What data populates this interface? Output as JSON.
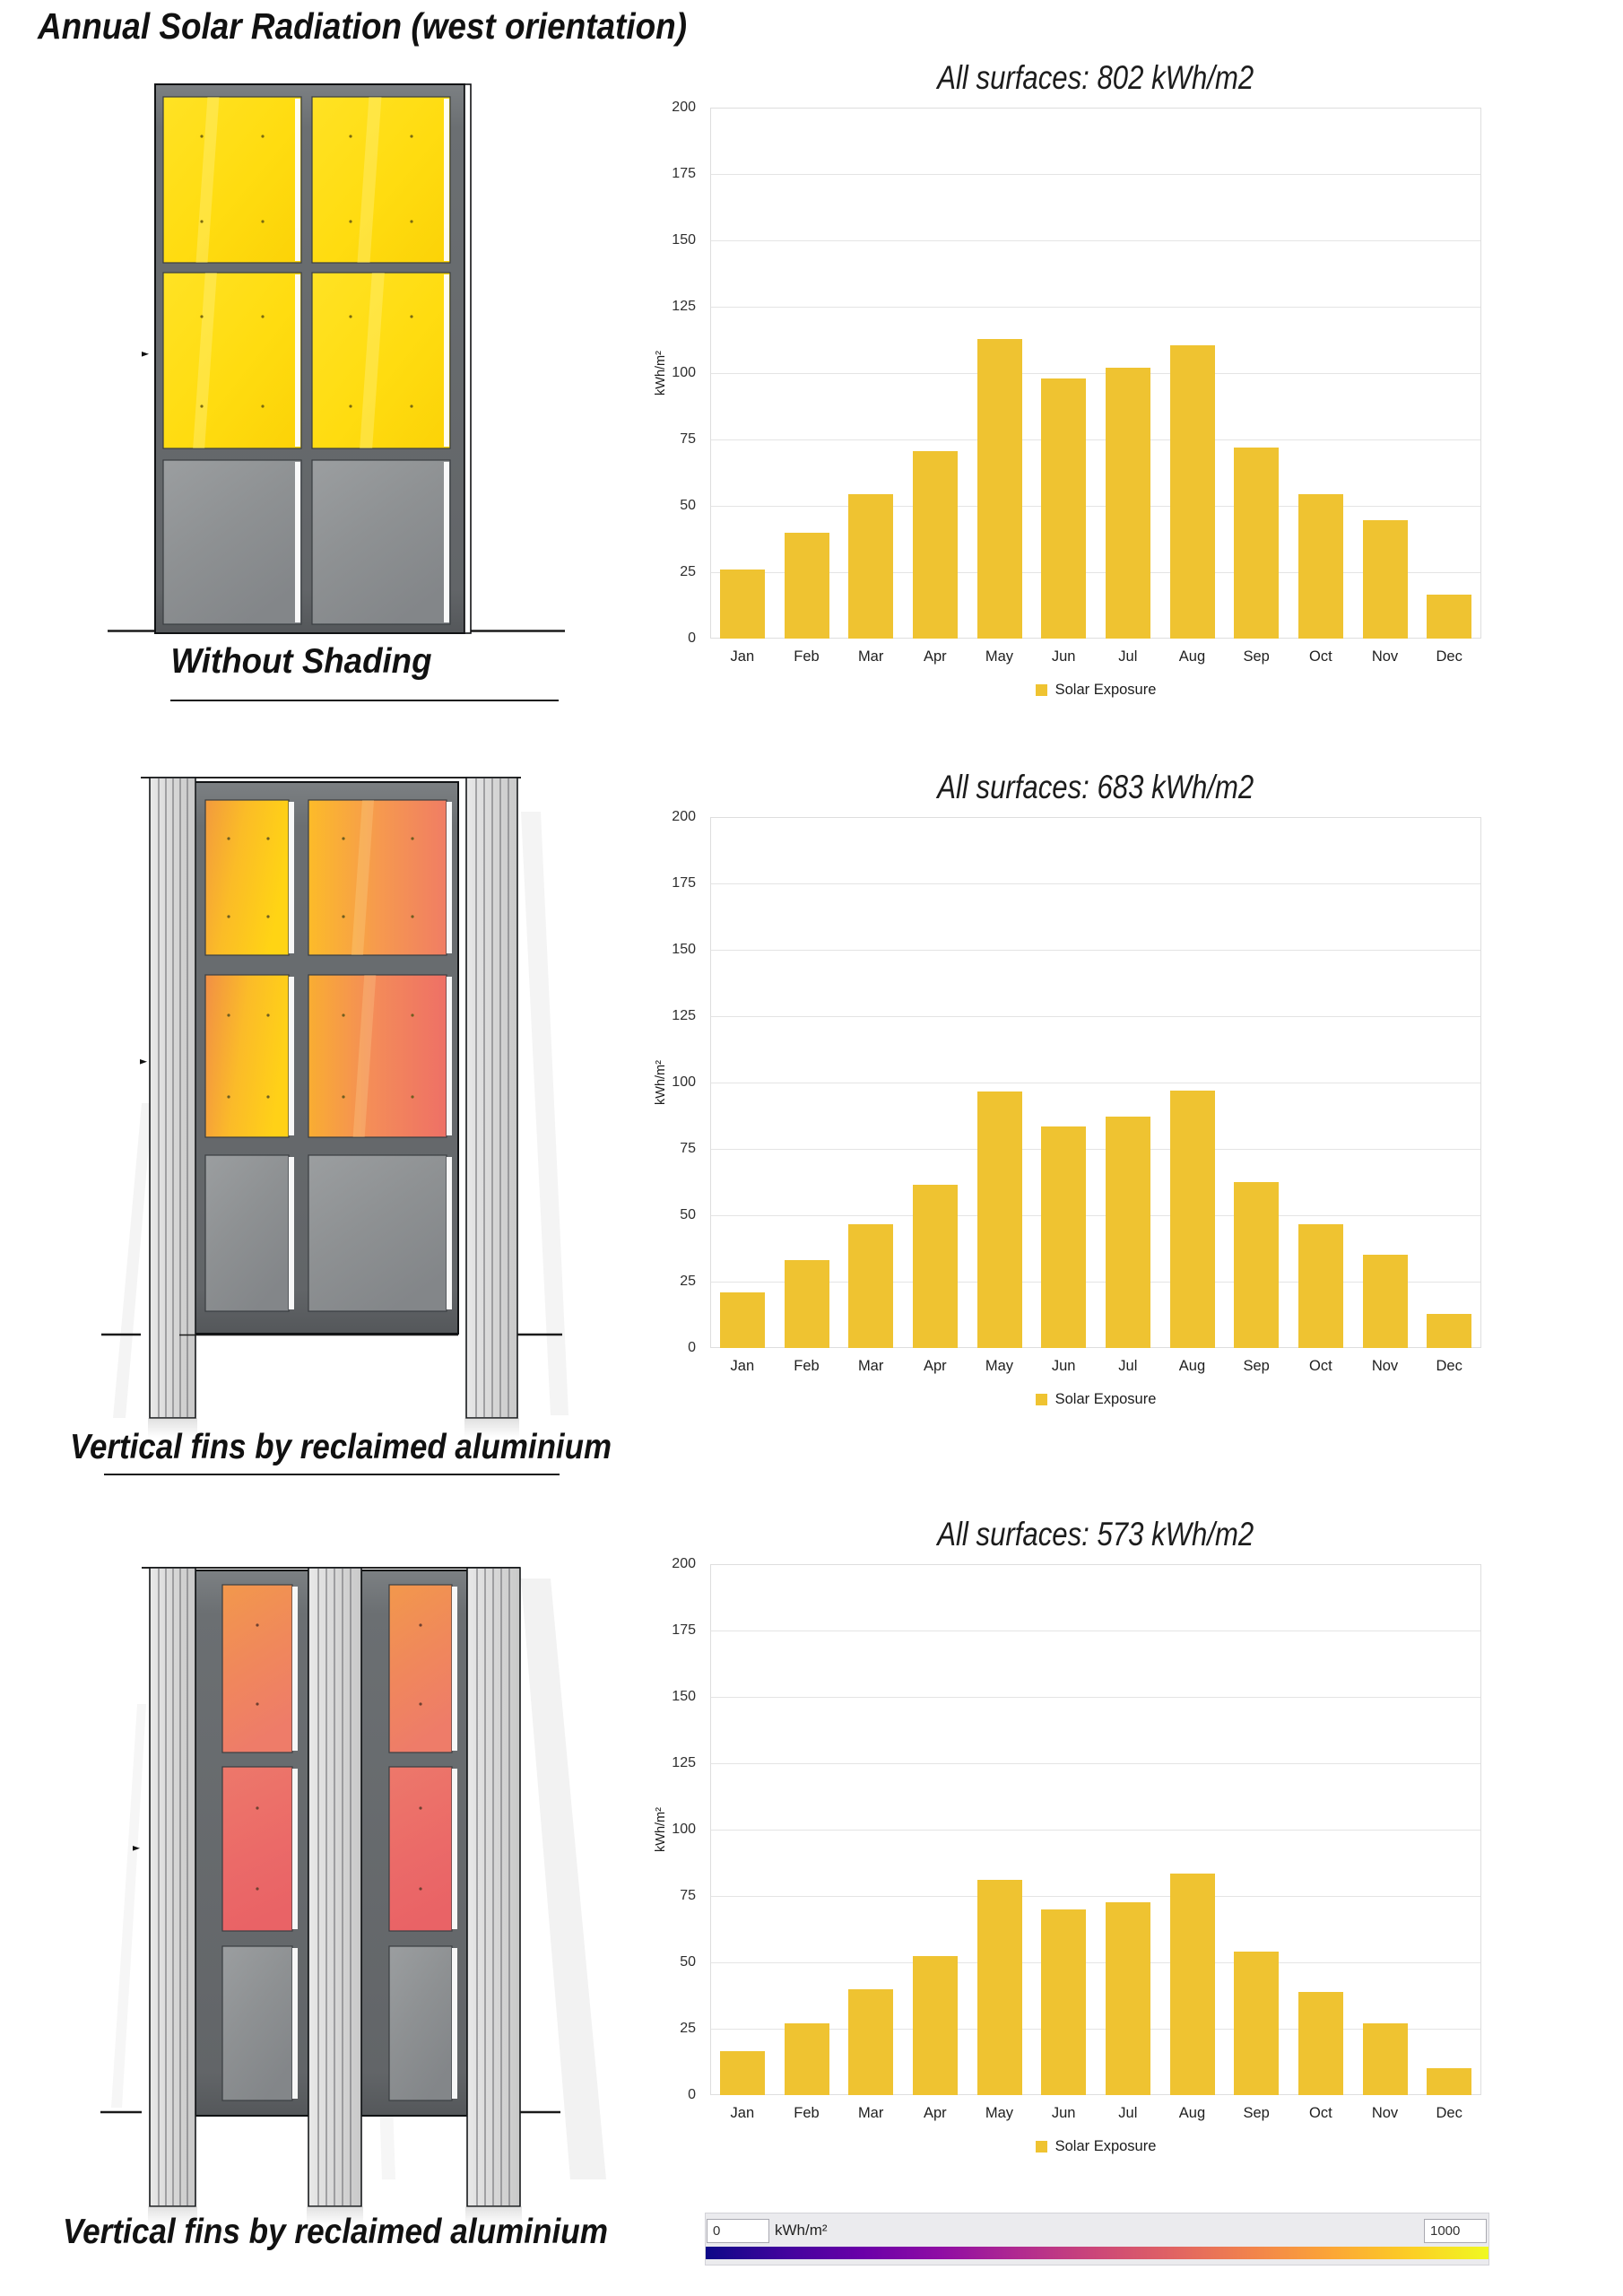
{
  "page_title": "Annual Solar Radiation (west orientation)",
  "rows": [
    {
      "caption": "Without Shading"
    },
    {
      "caption": "Vertical fins by reclaimed aluminium"
    },
    {
      "caption": "Vertical fins by reclaimed aluminium"
    }
  ],
  "chart_data": [
    {
      "type": "bar",
      "title": "All surfaces: 802 kWh/m2",
      "categories": [
        "Jan",
        "Feb",
        "Mar",
        "Apr",
        "May",
        "Jun",
        "Jul",
        "Aug",
        "Sep",
        "Oct",
        "Nov",
        "Dec"
      ],
      "values": [
        26,
        40,
        54.5,
        70.5,
        113,
        98,
        102,
        110.5,
        72,
        54.5,
        44.5,
        16.5
      ],
      "xlabel": "",
      "ylabel": "kWh/m²",
      "ylim": [
        0,
        200
      ],
      "ytick_step": 25,
      "grid": true,
      "legend": [
        "Solar Exposure"
      ],
      "legend_position": "bottom",
      "bar_color": "#efc331"
    },
    {
      "type": "bar",
      "title": "All surfaces: 683 kWh/m2",
      "categories": [
        "Jan",
        "Feb",
        "Mar",
        "Apr",
        "May",
        "Jun",
        "Jul",
        "Aug",
        "Sep",
        "Oct",
        "Nov",
        "Dec"
      ],
      "values": [
        21,
        33,
        46.5,
        61.5,
        96.5,
        83.5,
        87,
        97,
        62.5,
        46.5,
        35,
        13
      ],
      "xlabel": "",
      "ylabel": "kWh/m²",
      "ylim": [
        0,
        200
      ],
      "ytick_step": 25,
      "grid": true,
      "legend": [
        "Solar Exposure"
      ],
      "legend_position": "bottom",
      "bar_color": "#efc331"
    },
    {
      "type": "bar",
      "title": "All surfaces: 573 kWh/m2",
      "categories": [
        "Jan",
        "Feb",
        "Mar",
        "Apr",
        "May",
        "Jun",
        "Jul",
        "Aug",
        "Sep",
        "Oct",
        "Nov",
        "Dec"
      ],
      "values": [
        16.5,
        27,
        40,
        52.5,
        81,
        70,
        72.5,
        83.5,
        54,
        39,
        27,
        10
      ],
      "xlabel": "",
      "ylabel": "kWh/m²",
      "ylim": [
        0,
        200
      ],
      "ytick_step": 25,
      "grid": true,
      "legend": [
        "Solar Exposure"
      ],
      "legend_position": "bottom",
      "bar_color": "#efc331"
    }
  ],
  "colorbar": {
    "min_value": "0",
    "max_value": "1000",
    "unit": "kWh/m²",
    "colormap": [
      "#0d0887",
      "#41049d",
      "#6a00a8",
      "#8f0da4",
      "#b12a90",
      "#cc4778",
      "#e16462",
      "#f2844b",
      "#fca636",
      "#fcce25",
      "#f0f921"
    ]
  },
  "render_palette": {
    "unshaded_glass": "#ffdd12",
    "mid_exposure_glass": "#f5a040",
    "low_exposure_glass": "#ec6f68",
    "spandrel_gray": "#8f9294",
    "frame_gray": "#66696c",
    "fin_gray": "#d9d9d9"
  }
}
